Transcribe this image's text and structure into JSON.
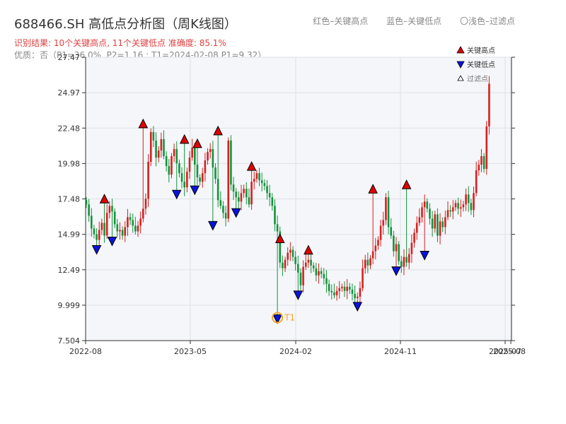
{
  "title": "688466.SH 高低点分析图（周K线图）",
  "subtitle": "识别结果: 10个关键高点, 11个关键低点  准确度: 85.1%",
  "subtitle2": "优质：否（P1=36.0%, P2=1.16 ; T1=2024-02-08 P1=9.32）",
  "top_legend": {
    "red": "红色–关键高点",
    "blue": "蓝色–关键低点",
    "light": "〇浅色–过滤点"
  },
  "legend": {
    "high": "关键高点",
    "low": "关键低点",
    "filtered": "过滤点"
  },
  "colors": {
    "up": "#d62020",
    "down": "#14933c",
    "high_marker": "#e00000",
    "low_marker": "#0a14d8",
    "t1_circle": "#f5a623"
  },
  "chart_data": {
    "type": "candlestick",
    "ylim": [
      7.504,
      27.47
    ],
    "yticks": [
      "27.47",
      "24.97",
      "22.48",
      "19.98",
      "17.48",
      "14.99",
      "12.49",
      "9.999",
      "7.504"
    ],
    "xticks": [
      "2022-08",
      "2023-05",
      "2024-02",
      "2024-11",
      "2025-07",
      "2025-08"
    ],
    "t1_label": "T1",
    "t1": {
      "week": 74,
      "price": 9.32
    },
    "key_points": [
      {
        "w": 4,
        "t": "L",
        "p": 14.2
      },
      {
        "w": 10,
        "t": "L",
        "p": 14.8
      },
      {
        "w": 7,
        "t": "H",
        "p": 17.2
      },
      {
        "w": 22,
        "t": "H",
        "p": 22.5
      },
      {
        "w": 35,
        "t": "L",
        "p": 18.1
      },
      {
        "w": 38,
        "t": "H",
        "p": 21.4
      },
      {
        "w": 42,
        "t": "L",
        "p": 18.4
      },
      {
        "w": 43,
        "t": "H",
        "p": 21.1
      },
      {
        "w": 49,
        "t": "L",
        "p": 15.9
      },
      {
        "w": 51,
        "t": "H",
        "p": 22.0
      },
      {
        "w": 58,
        "t": "L",
        "p": 16.8
      },
      {
        "w": 64,
        "t": "H",
        "p": 19.5
      },
      {
        "w": 74,
        "t": "L",
        "p": 9.32
      },
      {
        "w": 75,
        "t": "H",
        "p": 14.4
      },
      {
        "w": 82,
        "t": "L",
        "p": 11.0
      },
      {
        "w": 86,
        "t": "H",
        "p": 13.6
      },
      {
        "w": 105,
        "t": "L",
        "p": 10.2
      },
      {
        "w": 111,
        "t": "H",
        "p": 17.9
      },
      {
        "w": 120,
        "t": "L",
        "p": 12.7
      },
      {
        "w": 124,
        "t": "H",
        "p": 18.2
      },
      {
        "w": 131,
        "t": "L",
        "p": 13.8
      }
    ],
    "closes": [
      17.1,
      16.3,
      15.4,
      15.0,
      14.6,
      15.3,
      15.8,
      14.9,
      16.5,
      17.0,
      16.6,
      15.7,
      15.2,
      15.3,
      14.9,
      15.5,
      16.2,
      16.0,
      15.6,
      15.2,
      15.6,
      16.1,
      16.8,
      17.5,
      20.1,
      22.2,
      21.6,
      20.4,
      20.9,
      21.7,
      20.5,
      19.8,
      19.2,
      20.5,
      21.0,
      20.0,
      19.3,
      18.7,
      18.3,
      19.4,
      20.4,
      21.1,
      19.9,
      19.0,
      18.7,
      19.3,
      20.2,
      20.8,
      21.0,
      19.7,
      18.9,
      17.4,
      17.0,
      16.5,
      16.1,
      21.6,
      18.5,
      18.0,
      17.6,
      17.3,
      17.9,
      18.2,
      17.6,
      17.1,
      18.7,
      18.9,
      19.3,
      18.8,
      18.6,
      18.4,
      17.9,
      17.6,
      17.0,
      15.7,
      15.2,
      13.0,
      12.6,
      13.2,
      13.7,
      13.9,
      13.4,
      12.9,
      12.3,
      11.4,
      12.7,
      13.0,
      13.2,
      12.8,
      12.6,
      12.1,
      12.4,
      12.2,
      11.9,
      11.5,
      11.0,
      10.9,
      10.7,
      11.0,
      11.2,
      11.3,
      11.0,
      11.3,
      11.1,
      10.8,
      10.5,
      10.6,
      11.2,
      12.6,
      13.2,
      12.8,
      13.3,
      13.8,
      14.2,
      14.6,
      15.6,
      16.0,
      17.6,
      15.5,
      14.9,
      13.8,
      14.3,
      13.1,
      12.7,
      13.4,
      13.0,
      13.6,
      14.4,
      15.1,
      15.8,
      16.2,
      16.9,
      17.3,
      16.8,
      16.1,
      15.4,
      16.4,
      14.9,
      15.9,
      15.5,
      16.2,
      16.7,
      16.6,
      16.9,
      17.2,
      16.8,
      16.9,
      17.1,
      17.8,
      17.2,
      16.7,
      17.9,
      19.5,
      19.9,
      20.5,
      19.6,
      22.6,
      25.6
    ]
  }
}
